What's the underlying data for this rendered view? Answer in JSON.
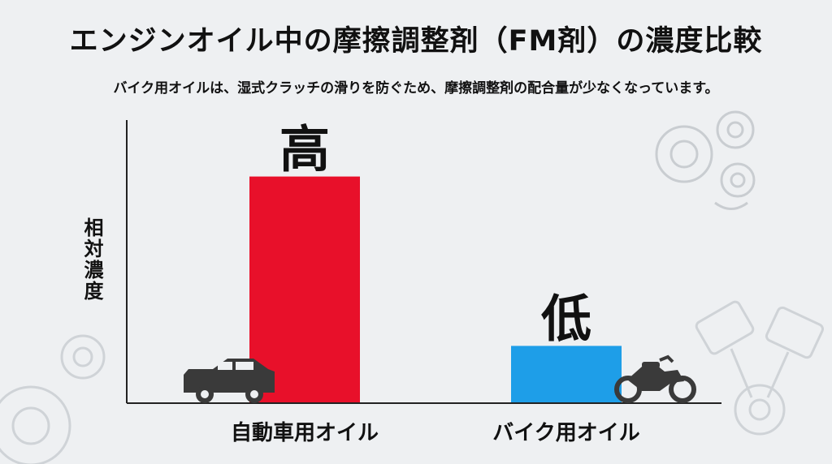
{
  "title": "エンジンオイル中の摩擦調整剤（FM剤）の濃度比較",
  "subtitle": "バイク用オイルは、湿式クラッチの滑りを防ぐため、摩擦調整剤の配合量が少なくなっています。",
  "chart_data": {
    "type": "bar",
    "title": "エンジンオイル中の摩擦調整剤（FM剤）の濃度比較",
    "ylabel": "相対濃度",
    "xlabel": "",
    "categories": [
      "自動車用オイル",
      "バイク用オイル"
    ],
    "values": [
      0.8,
      0.2
    ],
    "data_labels": [
      "高",
      "低"
    ],
    "colors": [
      "#e8102a",
      "#1e9ee8"
    ],
    "ylim": [
      0,
      1
    ],
    "grid": false,
    "legend": "none"
  },
  "icons": {
    "car": "car-icon",
    "motorcycle": "motorcycle-icon",
    "gears": "gears-icon",
    "pistons": "pistons-icon"
  }
}
